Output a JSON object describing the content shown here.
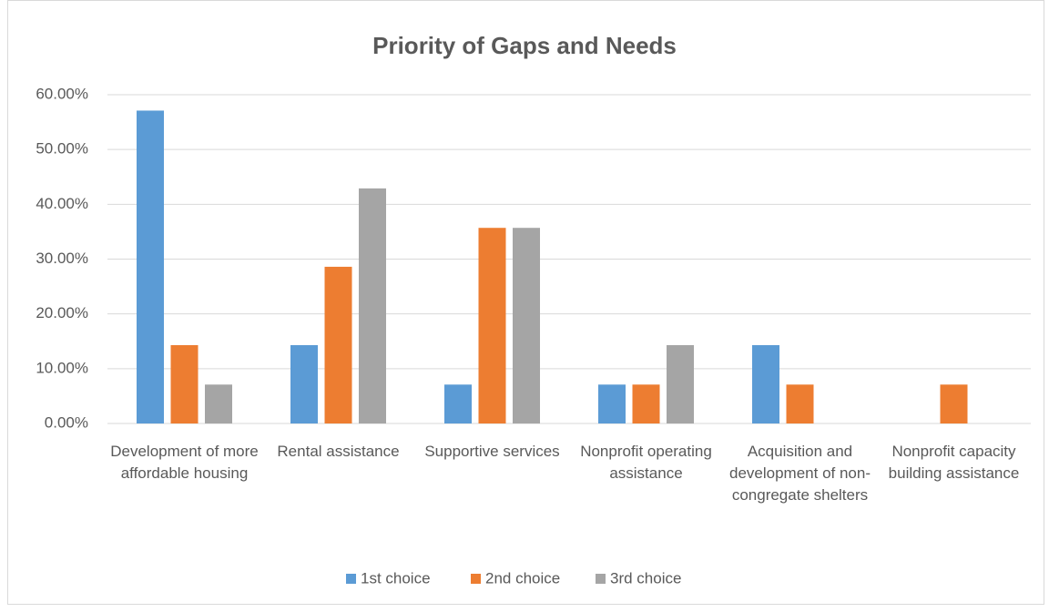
{
  "chart_data": {
    "type": "bar",
    "title": "Priority of Gaps and Needs",
    "categories": [
      "Development of more affordable housing",
      "Rental assistance",
      "Supportive services",
      "Nonprofit operating assistance",
      "Acquisition and development of non-congregate shelters",
      "Nonprofit capacity building assistance"
    ],
    "series": [
      {
        "name": "1st choice",
        "color": "#5b9bd5",
        "values": [
          57.1,
          14.3,
          7.1,
          7.1,
          14.3,
          0
        ]
      },
      {
        "name": "2nd choice",
        "color": "#ed7d31",
        "values": [
          14.3,
          28.6,
          35.7,
          7.1,
          7.1,
          7.1
        ]
      },
      {
        "name": "3rd choice",
        "color": "#a5a5a5",
        "values": [
          7.1,
          42.9,
          35.7,
          14.3,
          0,
          0
        ]
      }
    ],
    "ylim": [
      0,
      60
    ],
    "yticks": [
      {
        "value": 0,
        "label": "0.00%"
      },
      {
        "value": 10,
        "label": "10.00%"
      },
      {
        "value": 20,
        "label": "20.00%"
      },
      {
        "value": 30,
        "label": "30.00%"
      },
      {
        "value": 40,
        "label": "40.00%"
      },
      {
        "value": 50,
        "label": "50.00%"
      },
      {
        "value": 60,
        "label": "60.00%"
      }
    ],
    "grid": true,
    "legend": "bottom"
  }
}
